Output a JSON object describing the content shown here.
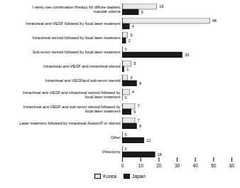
{
  "chart_data": {
    "type": "bar",
    "orientation": "horizontal",
    "categories": [
      "I rarely use combination therapy for diffuse diabetic\nmacular edema",
      "Intravitreal anti-VEGF followed by focal laser treatment",
      "Intravitreal steroid followed by focal laser treatment",
      "Sub-tenon steroid followed by focal laser treatment",
      "Intravitreal anti-VEGF and intravitreal steroid",
      "Intravitreal anti-VEGFand sub-tenon steroid",
      "Intravitreal anti-VEGF and intravitreal steroid followed by\nfocal laser treatment",
      "Intravitreal anti-VEGF and sub-tenon steroid followed by\nfocal laser treatment",
      "Laser treatment followed by intravitreal Avastin® or steroid",
      "Other",
      "Vitrectomy"
    ],
    "series": [
      {
        "name": "Korea",
        "color": "#e8e8e8",
        "values": [
          19,
          48,
          3,
          0,
          5,
          3,
          4,
          7,
          7,
          0,
          0
        ]
      },
      {
        "name": "Japan",
        "color": "#1a1a1a",
        "values": [
          9,
          4,
          2,
          33,
          1,
          8,
          0,
          5,
          8,
          12,
          18
        ]
      }
    ],
    "xlim": [
      0,
      60
    ],
    "xticks": [
      0,
      10,
      20,
      30,
      40,
      50,
      60
    ],
    "data_labels": true,
    "grid": false,
    "legend": "bottom"
  }
}
